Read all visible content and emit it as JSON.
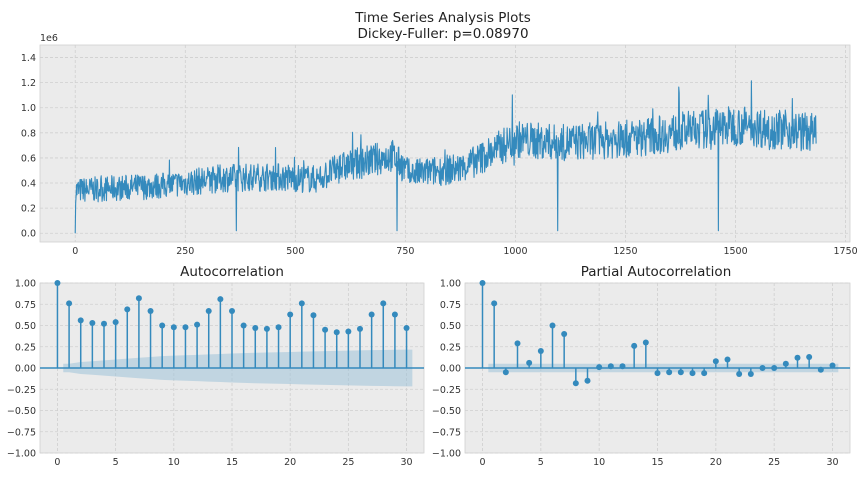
{
  "figure": {
    "title_line1": "Time Series Analysis Plots",
    "title_line2": "Dickey-Fuller: p=0.08970"
  },
  "colors": {
    "series": "#348abd",
    "band": "#9fc3d9",
    "axes_bg": "#ebebeb"
  },
  "chart_data": [
    {
      "type": "line",
      "title": "",
      "xlabel": "",
      "ylabel": "",
      "y_offset_label": "1e6",
      "xlim": [
        -80,
        1760
      ],
      "ylim": [
        -0.07,
        1.5
      ],
      "x_ticks": [
        0,
        250,
        500,
        750,
        1000,
        1250,
        1500,
        1750
      ],
      "y_ticks": [
        0.0,
        0.2,
        0.4,
        0.6,
        0.8,
        1.0,
        1.2,
        1.4
      ],
      "y_tick_labels": [
        "0.0",
        "0.2",
        "0.4",
        "0.6",
        "0.8",
        "1.0",
        "1.2",
        "1.4"
      ],
      "x_tick_labels": [
        "0",
        "250",
        "500",
        "750",
        "1000",
        "1250",
        "1500",
        "1750"
      ],
      "n_points": 1684,
      "trend_knots": [
        [
          0,
          0.34
        ],
        [
          200,
          0.38
        ],
        [
          340,
          0.44
        ],
        [
          450,
          0.45
        ],
        [
          550,
          0.43
        ],
        [
          600,
          0.52
        ],
        [
          720,
          0.62
        ],
        [
          760,
          0.47
        ],
        [
          880,
          0.52
        ],
        [
          1000,
          0.75
        ],
        [
          1100,
          0.72
        ],
        [
          1250,
          0.75
        ],
        [
          1400,
          0.82
        ],
        [
          1500,
          0.86
        ],
        [
          1683,
          0.8
        ]
      ],
      "drop_points": [
        [
          0,
          0.0
        ],
        [
          366,
          0.02
        ],
        [
          731,
          0.02
        ],
        [
          1096,
          0.02
        ],
        [
          1461,
          0.02
        ]
      ],
      "grid": true
    },
    {
      "type": "stem",
      "title": "Autocorrelation",
      "xlabel": "",
      "ylabel": "",
      "xlim": [
        -1.5,
        31.5
      ],
      "ylim": [
        -1.0,
        1.0
      ],
      "x_ticks": [
        0,
        5,
        10,
        15,
        20,
        25,
        30
      ],
      "x_tick_labels": [
        "0",
        "5",
        "10",
        "15",
        "20",
        "25",
        "30"
      ],
      "y_ticks": [
        -1.0,
        -0.75,
        -0.5,
        -0.25,
        0.0,
        0.25,
        0.5,
        0.75,
        1.0
      ],
      "y_tick_labels": [
        "−1.00",
        "−0.75",
        "−0.50",
        "−0.25",
        "0.00",
        "0.25",
        "0.50",
        "0.75",
        "1.00"
      ],
      "lags": [
        0,
        1,
        2,
        3,
        4,
        5,
        6,
        7,
        8,
        9,
        10,
        11,
        12,
        13,
        14,
        15,
        16,
        17,
        18,
        19,
        20,
        21,
        22,
        23,
        24,
        25,
        26,
        27,
        28,
        29,
        30
      ],
      "values": [
        1.0,
        0.76,
        0.56,
        0.53,
        0.52,
        0.54,
        0.69,
        0.82,
        0.67,
        0.5,
        0.48,
        0.48,
        0.51,
        0.67,
        0.81,
        0.67,
        0.5,
        0.47,
        0.46,
        0.48,
        0.63,
        0.76,
        0.62,
        0.45,
        0.42,
        0.43,
        0.46,
        0.63,
        0.76,
        0.63,
        0.47
      ],
      "confint": [
        0.0,
        0.05,
        0.07,
        0.08,
        0.09,
        0.1,
        0.11,
        0.12,
        0.13,
        0.14,
        0.145,
        0.15,
        0.155,
        0.16,
        0.165,
        0.17,
        0.175,
        0.18,
        0.183,
        0.186,
        0.189,
        0.192,
        0.195,
        0.198,
        0.201,
        0.204,
        0.207,
        0.21,
        0.212,
        0.214,
        0.216
      ],
      "grid": true
    },
    {
      "type": "stem",
      "title": "Partial Autocorrelation",
      "xlabel": "",
      "ylabel": "",
      "xlim": [
        -1.5,
        31.5
      ],
      "ylim": [
        -1.0,
        1.0
      ],
      "x_ticks": [
        0,
        5,
        10,
        15,
        20,
        25,
        30
      ],
      "x_tick_labels": [
        "0",
        "5",
        "10",
        "15",
        "20",
        "25",
        "30"
      ],
      "y_ticks": [
        -1.0,
        -0.75,
        -0.5,
        -0.25,
        0.0,
        0.25,
        0.5,
        0.75,
        1.0
      ],
      "y_tick_labels": [
        "−1.00",
        "−0.75",
        "−0.50",
        "−0.25",
        "0.00",
        "0.25",
        "0.50",
        "0.75",
        "1.00"
      ],
      "lags": [
        0,
        1,
        2,
        3,
        4,
        5,
        6,
        7,
        8,
        9,
        10,
        11,
        12,
        13,
        14,
        15,
        16,
        17,
        18,
        19,
        20,
        21,
        22,
        23,
        24,
        25,
        26,
        27,
        28,
        29,
        30
      ],
      "values": [
        1.0,
        0.76,
        -0.05,
        0.29,
        0.06,
        0.2,
        0.5,
        0.4,
        -0.18,
        -0.15,
        0.01,
        0.02,
        0.02,
        0.26,
        0.3,
        -0.06,
        -0.05,
        -0.05,
        -0.06,
        -0.06,
        0.08,
        0.1,
        -0.07,
        -0.07,
        0.0,
        0.0,
        0.05,
        0.12,
        0.13,
        -0.02,
        0.03
      ],
      "confint": [
        0.0,
        0.05,
        0.05,
        0.05,
        0.05,
        0.05,
        0.05,
        0.05,
        0.05,
        0.05,
        0.05,
        0.05,
        0.05,
        0.05,
        0.05,
        0.05,
        0.05,
        0.05,
        0.05,
        0.05,
        0.05,
        0.05,
        0.05,
        0.05,
        0.05,
        0.05,
        0.05,
        0.05,
        0.05,
        0.05,
        0.05
      ],
      "grid": true
    }
  ]
}
